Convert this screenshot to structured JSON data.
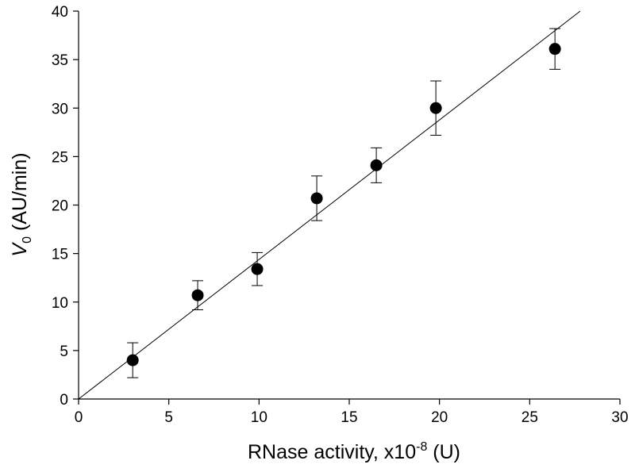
{
  "chart_data": {
    "type": "scatter",
    "xlabel": {
      "main": "RNase activity, x10",
      "sup": "-8",
      "unit": " (U)"
    },
    "ylabel": {
      "main": "V",
      "sub": "0",
      "unit": " (AU/min)"
    },
    "xlim": [
      0,
      30
    ],
    "ylim": [
      0,
      40
    ],
    "xticks": [
      0,
      5,
      10,
      15,
      20,
      25,
      30
    ],
    "yticks": [
      0,
      5,
      10,
      15,
      20,
      25,
      30,
      35,
      40
    ],
    "grid": false,
    "points": [
      {
        "x": 3.0,
        "y": 4.0,
        "err": 1.8
      },
      {
        "x": 6.6,
        "y": 10.7,
        "err": 1.5
      },
      {
        "x": 9.9,
        "y": 13.4,
        "err": 1.7
      },
      {
        "x": 13.2,
        "y": 20.7,
        "err": 2.3
      },
      {
        "x": 16.5,
        "y": 24.1,
        "err": 1.8
      },
      {
        "x": 19.8,
        "y": 30.0,
        "err": 2.8
      },
      {
        "x": 26.4,
        "y": 36.1,
        "err": 2.1
      }
    ],
    "fit_line": {
      "x0": 0,
      "y0": 0,
      "x1": 27.8,
      "y1": 40
    }
  }
}
